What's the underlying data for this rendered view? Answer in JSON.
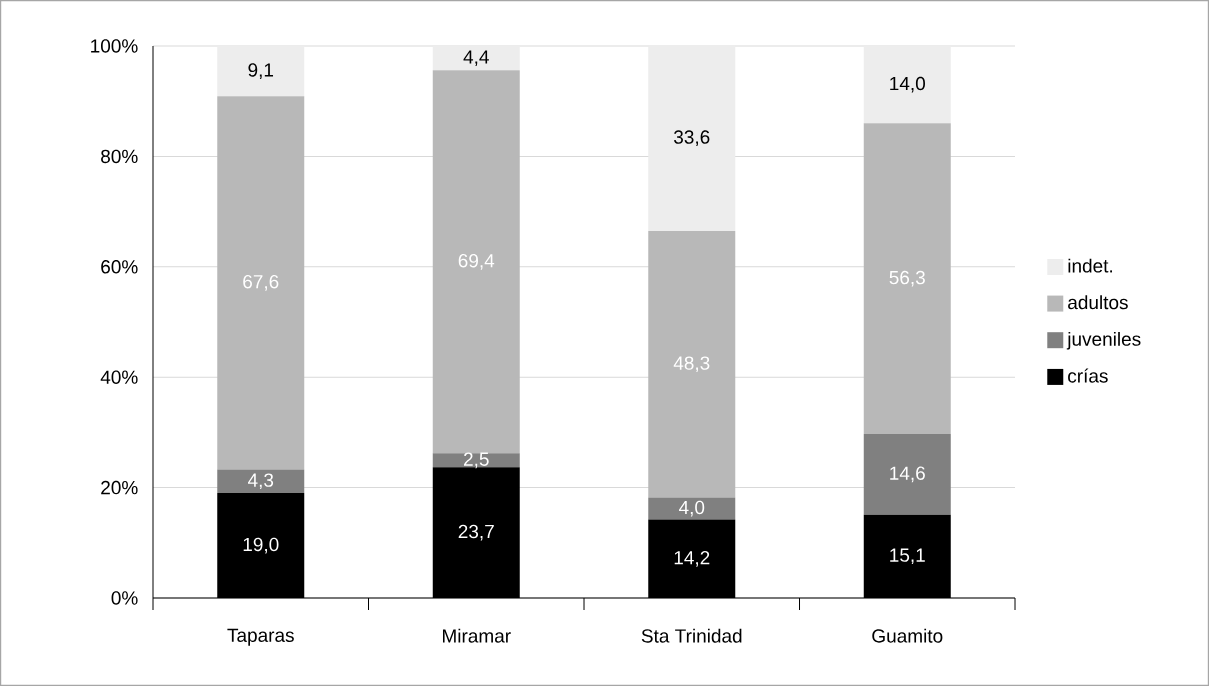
{
  "chart_data": {
    "type": "bar",
    "stacked": true,
    "categories": [
      "Taparas",
      "Miramar",
      "Sta Trinidad",
      "Guamito"
    ],
    "series": [
      {
        "name": "crías",
        "color": "#000000",
        "values": [
          19.0,
          23.7,
          14.2,
          15.1
        ],
        "value_labels": [
          "19,0",
          "23,7",
          "14,2",
          "15,1"
        ]
      },
      {
        "name": "juveniles",
        "color": "#808080",
        "values": [
          4.3,
          2.5,
          4.0,
          14.6
        ],
        "value_labels": [
          "4,3",
          "2,5",
          "4,0",
          "14,6"
        ]
      },
      {
        "name": "adultos",
        "color": "#b8b8b8",
        "values": [
          67.6,
          69.4,
          48.3,
          56.3
        ],
        "value_labels": [
          "67,6",
          "69,4",
          "48,3",
          "56,3"
        ]
      },
      {
        "name": "indet.",
        "color": "#ededed",
        "values": [
          9.1,
          4.4,
          33.6,
          14.0
        ],
        "value_labels": [
          "9,1",
          "4,4",
          "33,6",
          "14,0"
        ]
      }
    ],
    "ylim": [
      0,
      100
    ],
    "yticks": [
      {
        "value": 0,
        "label": "0%"
      },
      {
        "value": 20,
        "label": "20%"
      },
      {
        "value": 40,
        "label": "40%"
      },
      {
        "value": 60,
        "label": "60%"
      },
      {
        "value": 80,
        "label": "80%"
      },
      {
        "value": 100,
        "label": "100%"
      }
    ],
    "grid": "y",
    "legend": "right"
  }
}
